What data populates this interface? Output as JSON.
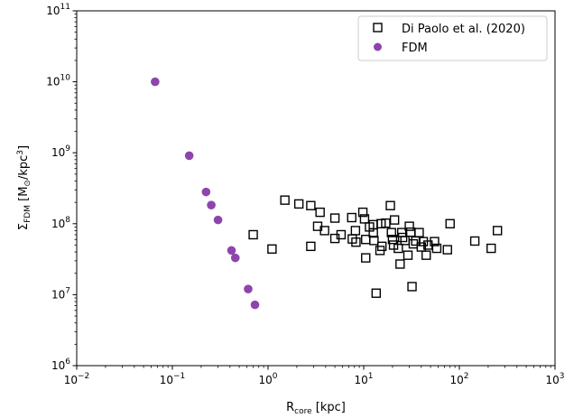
{
  "chart_data": {
    "type": "scatter",
    "xscale": "log",
    "yscale": "log",
    "xlim": [
      0.01,
      1000
    ],
    "ylim": [
      1000000,
      100000000000
    ],
    "grid": false,
    "legend_position": "top-right",
    "xlabel": {
      "main": "R",
      "sub": "core",
      "rest": " [kpc]"
    },
    "ylabel": {
      "sym": "Σ",
      "sub": "FDM",
      "open": "  [M",
      "sun": "⊙",
      "mid": "/kpc",
      "sup": "3",
      "close": "]"
    },
    "x_ticks": [
      {
        "value": 0.01,
        "base": "10",
        "exp": "−2"
      },
      {
        "value": 0.1,
        "base": "10",
        "exp": "−1"
      },
      {
        "value": 1,
        "base": "10",
        "exp": "0"
      },
      {
        "value": 10,
        "base": "10",
        "exp": "1"
      },
      {
        "value": 100,
        "base": "10",
        "exp": "2"
      },
      {
        "value": 1000,
        "base": "10",
        "exp": "3"
      }
    ],
    "y_ticks": [
      {
        "value": 1000000,
        "base": "10",
        "exp": "6"
      },
      {
        "value": 10000000,
        "base": "10",
        "exp": "7"
      },
      {
        "value": 100000000,
        "base": "10",
        "exp": "8"
      },
      {
        "value": 1000000000,
        "base": "10",
        "exp": "9"
      },
      {
        "value": 10000000000,
        "base": "10",
        "exp": "10"
      },
      {
        "value": 100000000000,
        "base": "10",
        "exp": "11"
      }
    ],
    "series": [
      {
        "name": "Di Paolo et al. (2020)",
        "marker": "square-open",
        "color": "#000000",
        "points": [
          [
            0.7,
            70000000
          ],
          [
            1.1,
            44000000
          ],
          [
            1.5,
            215000000
          ],
          [
            2.1,
            190000000
          ],
          [
            2.8,
            180000000
          ],
          [
            2.8,
            48000000
          ],
          [
            3.3,
            92000000
          ],
          [
            3.5,
            145000000
          ],
          [
            3.9,
            80000000
          ],
          [
            5.0,
            120000000
          ],
          [
            5.0,
            62000000
          ],
          [
            5.8,
            70000000
          ],
          [
            7.5,
            122000000
          ],
          [
            7.6,
            61000000
          ],
          [
            8.2,
            80000000
          ],
          [
            8.3,
            55000000
          ],
          [
            9.8,
            145000000
          ],
          [
            10.2,
            117000000
          ],
          [
            10.5,
            60000000
          ],
          [
            10.5,
            33000000
          ],
          [
            11.5,
            90000000
          ],
          [
            12.6,
            97000000
          ],
          [
            12.6,
            74000000
          ],
          [
            12.8,
            58000000
          ],
          [
            13.5,
            10500000
          ],
          [
            14.8,
            42000000
          ],
          [
            15.2,
            100000000
          ],
          [
            15.5,
            48000000
          ],
          [
            17.0,
            102000000
          ],
          [
            19.0,
            180000000
          ],
          [
            19.5,
            75000000
          ],
          [
            20.0,
            60000000
          ],
          [
            20.5,
            50000000
          ],
          [
            21.0,
            113000000
          ],
          [
            23.0,
            45000000
          ],
          [
            24.0,
            27000000
          ],
          [
            25.0,
            75000000
          ],
          [
            25.5,
            64000000
          ],
          [
            27.0,
            58000000
          ],
          [
            29.0,
            36000000
          ],
          [
            30.0,
            92000000
          ],
          [
            31.0,
            76000000
          ],
          [
            32.0,
            13000000
          ],
          [
            33.0,
            52000000
          ],
          [
            35.0,
            57000000
          ],
          [
            38.0,
            75000000
          ],
          [
            40.0,
            47000000
          ],
          [
            42.0,
            56000000
          ],
          [
            45.0,
            36000000
          ],
          [
            47.0,
            50000000
          ],
          [
            55.0,
            56000000
          ],
          [
            58.0,
            45000000
          ],
          [
            75.0,
            43000000
          ],
          [
            80.0,
            100000000
          ],
          [
            145.0,
            57000000
          ],
          [
            215.0,
            45000000
          ],
          [
            250.0,
            80000000
          ]
        ]
      },
      {
        "name": "FDM",
        "marker": "circle-filled",
        "color": "#8e44ad",
        "points": [
          [
            0.066,
            10000000000
          ],
          [
            0.15,
            910000000
          ],
          [
            0.225,
            280000000
          ],
          [
            0.255,
            183000000
          ],
          [
            0.3,
            113000000
          ],
          [
            0.415,
            42000000
          ],
          [
            0.455,
            33000000
          ],
          [
            0.62,
            12000000
          ],
          [
            0.73,
            7200000
          ]
        ]
      }
    ]
  }
}
